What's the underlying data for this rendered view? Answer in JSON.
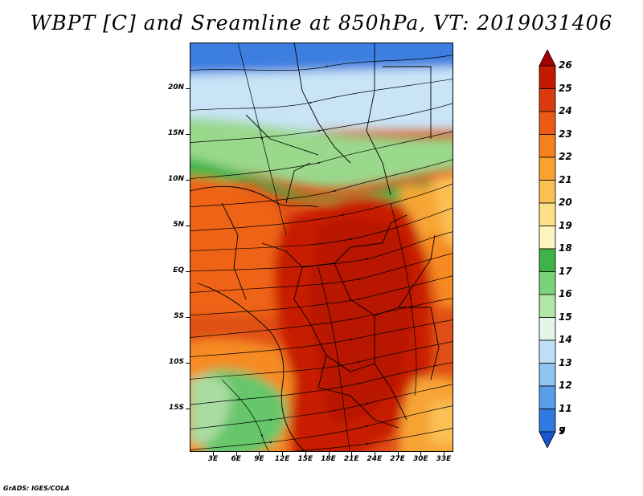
{
  "title": "WBPT [C] and Sreamline at 850hPa, VT: 2019031406",
  "footer": "GrADS: IGES/COLA",
  "map": {
    "lat_labels": [
      "20N",
      "15N",
      "10N",
      "5N",
      "EQ",
      "5S",
      "10S",
      "15S"
    ],
    "lon_labels": [
      "3E",
      "6E",
      "9E",
      "12E",
      "15E",
      "18E",
      "21E",
      "24E",
      "27E",
      "30E",
      "33E"
    ]
  },
  "legend": {
    "labels": [
      "26",
      "25",
      "24",
      "23",
      "22",
      "21",
      "20",
      "19",
      "18",
      "17",
      "16",
      "15",
      "14",
      "13",
      "12",
      "11",
      "9",
      "7"
    ],
    "colors": [
      "#a50000",
      "#c41a00",
      "#d93a10",
      "#ed5a16",
      "#f5811c",
      "#f9a230",
      "#fbc054",
      "#fde08a",
      "#fdf3be",
      "#3fb24a",
      "#7ad27a",
      "#b2e6a8",
      "#e4f6e8",
      "#bcdff6",
      "#8fc4f0",
      "#5a9ee8",
      "#2e7ae0",
      "#1a55d0"
    ]
  }
}
